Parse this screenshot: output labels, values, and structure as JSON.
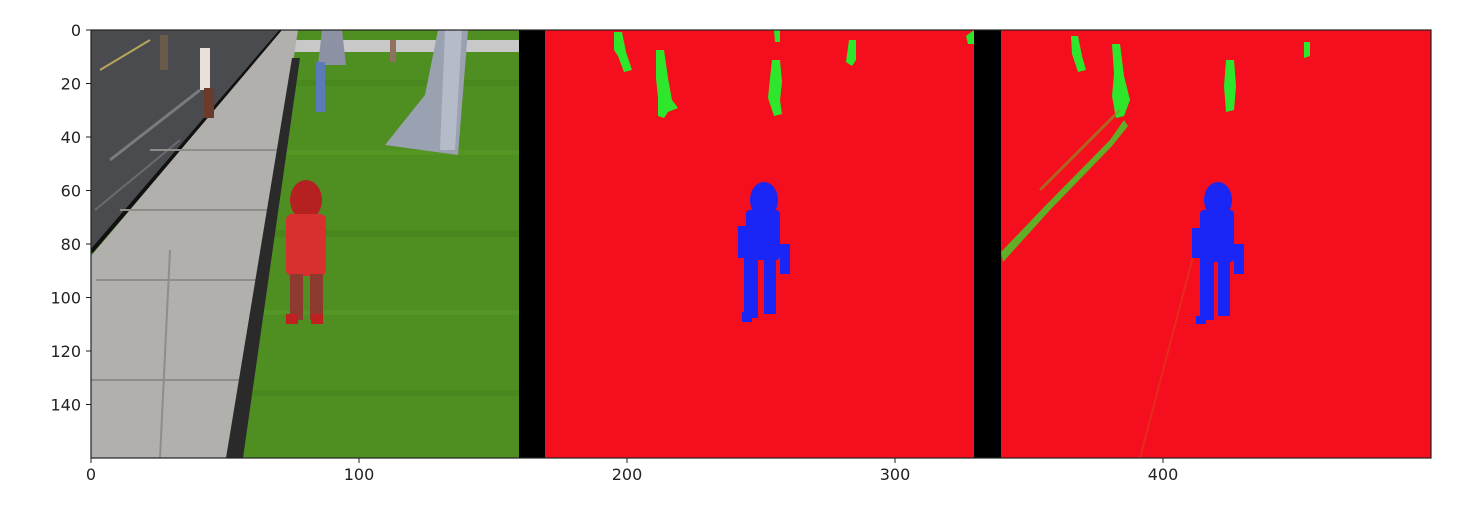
{
  "figure": {
    "x_ticks": [
      "0",
      "100",
      "200",
      "300",
      "400"
    ],
    "y_ticks": [
      "0",
      "20",
      "40",
      "60",
      "80",
      "100",
      "120",
      "140"
    ],
    "x_limits": [
      0,
      500
    ],
    "y_limits": [
      0,
      160
    ],
    "y_inverted": true
  },
  "panels": [
    {
      "name": "camera-image",
      "x_range": [
        0,
        160
      ]
    },
    {
      "name": "ground-truth-mask",
      "x_range": [
        170,
        330
      ]
    },
    {
      "name": "predicted-mask",
      "x_range": [
        340,
        500
      ]
    }
  ],
  "colors": {
    "background_class": "#f50f1e",
    "other_people_class": "#2ee62b",
    "target_hero_class": "#1a26f5",
    "separator": "#000000",
    "grass": "#4f8f22",
    "road": "#4a4b4e",
    "sidewalk": "#b1b0ad",
    "hero_body": "#d8302e"
  }
}
